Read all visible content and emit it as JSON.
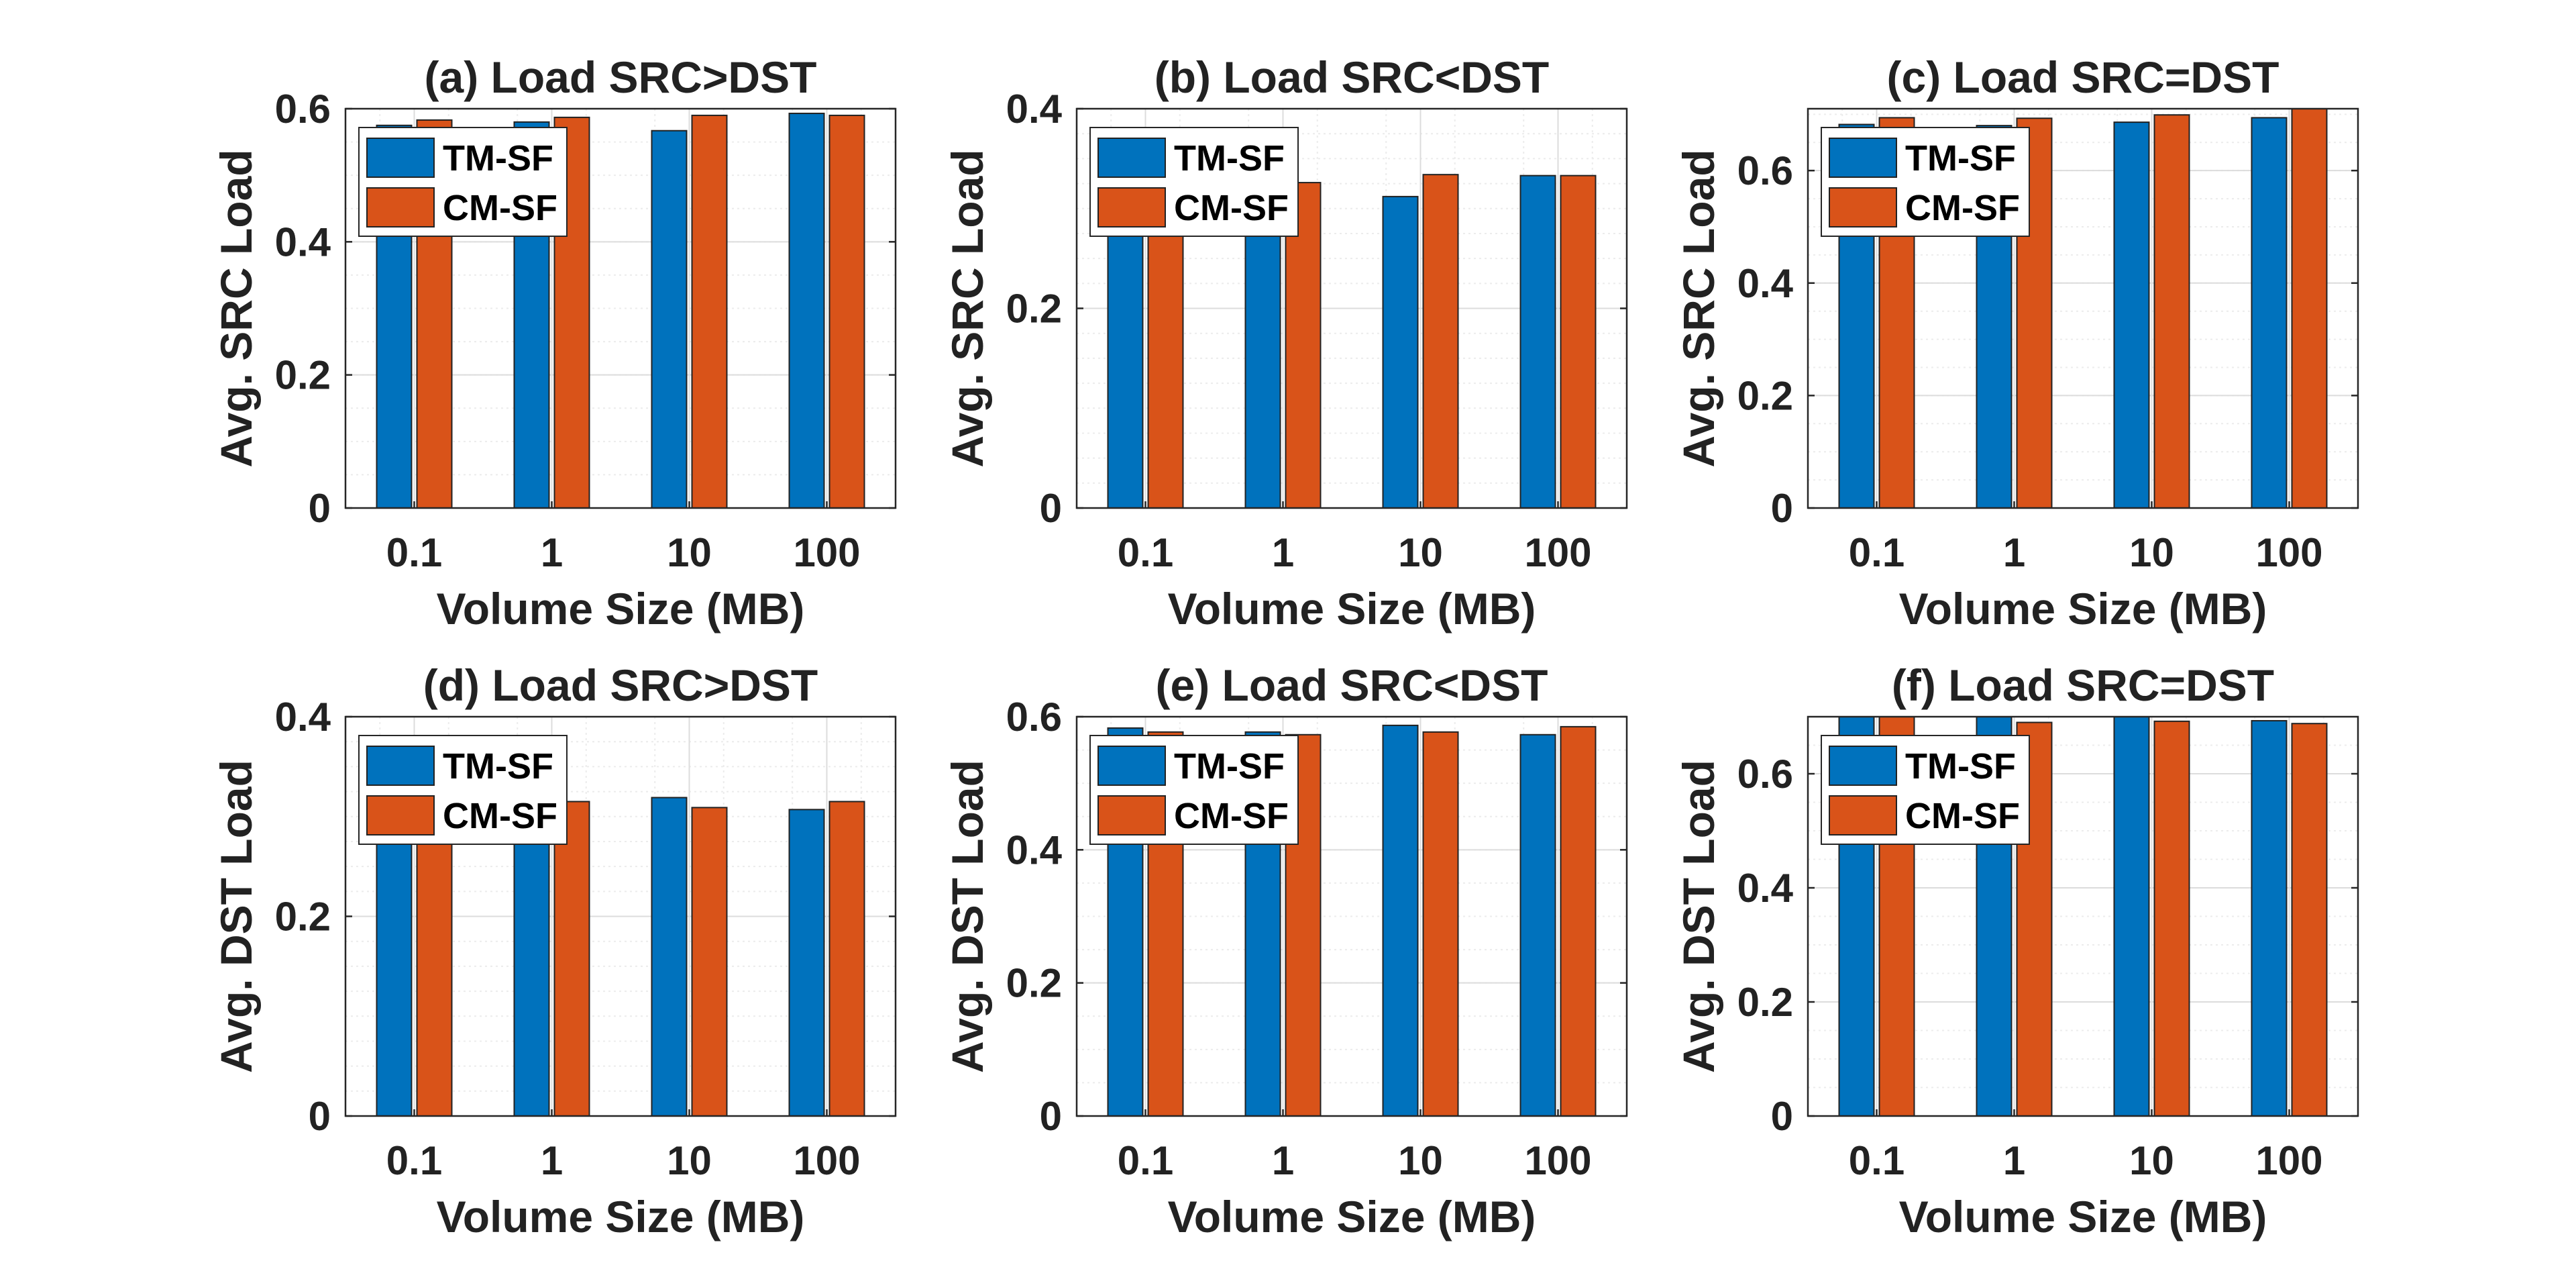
{
  "chart_data": [
    {
      "type": "bar",
      "title": "(a) Load SRC>DST",
      "xlabel": "Volume Size (MB)",
      "ylabel": "Avg. SRC Load",
      "categories": [
        "0.1",
        "1",
        "10",
        "100"
      ],
      "ylim": [
        0,
        0.6
      ],
      "yticks": [
        0,
        0.2,
        0.4,
        0.6
      ],
      "ytick_labels": [
        "0",
        "0.2",
        "0.4",
        "0.6"
      ],
      "grid": true,
      "legend_position": "top-left",
      "series": [
        {
          "name": "TM-SF",
          "color": "#0072BD",
          "values": [
            0.575,
            0.58,
            0.567,
            0.593
          ]
        },
        {
          "name": "CM-SF",
          "color": "#D95319",
          "values": [
            0.583,
            0.587,
            0.59,
            0.59
          ]
        }
      ]
    },
    {
      "type": "bar",
      "title": "(b) Load SRC<DST",
      "xlabel": "Volume Size (MB)",
      "ylabel": "Avg. SRC Load",
      "categories": [
        "0.1",
        "1",
        "10",
        "100"
      ],
      "ylim": [
        0,
        0.4
      ],
      "yticks": [
        0,
        0.2,
        0.4
      ],
      "ytick_labels": [
        "0",
        "0.2",
        "0.4"
      ],
      "grid": true,
      "legend_position": "top-left",
      "series": [
        {
          "name": "TM-SF",
          "color": "#0072BD",
          "values": [
            0.318,
            0.32,
            0.312,
            0.333
          ]
        },
        {
          "name": "CM-SF",
          "color": "#D95319",
          "values": [
            0.322,
            0.326,
            0.334,
            0.333
          ]
        }
      ]
    },
    {
      "type": "bar",
      "title": "(c) Load SRC=DST",
      "xlabel": "Volume Size (MB)",
      "ylabel": "Avg. SRC Load",
      "categories": [
        "0.1",
        "1",
        "10",
        "100"
      ],
      "ylim": [
        0,
        0.71
      ],
      "yticks": [
        0,
        0.2,
        0.4,
        0.6
      ],
      "ytick_labels": [
        "0",
        "0.2",
        "0.4",
        "0.6"
      ],
      "grid": true,
      "legend_position": "top-left",
      "series": [
        {
          "name": "TM-SF",
          "color": "#0072BD",
          "values": [
            0.682,
            0.68,
            0.686,
            0.694
          ]
        },
        {
          "name": "CM-SF",
          "color": "#D95319",
          "values": [
            0.694,
            0.693,
            0.699,
            0.71
          ]
        }
      ]
    },
    {
      "type": "bar",
      "title": "(d) Load SRC>DST",
      "xlabel": "Volume Size (MB)",
      "ylabel": "Avg. DST Load",
      "categories": [
        "0.1",
        "1",
        "10",
        "100"
      ],
      "ylim": [
        0,
        0.4
      ],
      "yticks": [
        0,
        0.2,
        0.4
      ],
      "ytick_labels": [
        "0",
        "0.2",
        "0.4"
      ],
      "grid": true,
      "legend_position": "top-left",
      "series": [
        {
          "name": "TM-SF",
          "color": "#0072BD",
          "values": [
            0.31,
            0.312,
            0.319,
            0.307
          ]
        },
        {
          "name": "CM-SF",
          "color": "#D95319",
          "values": [
            0.315,
            0.315,
            0.309,
            0.315
          ]
        }
      ]
    },
    {
      "type": "bar",
      "title": "(e) Load SRC<DST",
      "xlabel": "Volume Size (MB)",
      "ylabel": "Avg. DST Load",
      "categories": [
        "0.1",
        "1",
        "10",
        "100"
      ],
      "ylim": [
        0,
        0.6
      ],
      "yticks": [
        0,
        0.2,
        0.4,
        0.6
      ],
      "ytick_labels": [
        "0",
        "0.2",
        "0.4",
        "0.6"
      ],
      "grid": true,
      "legend_position": "top-left",
      "series": [
        {
          "name": "TM-SF",
          "color": "#0072BD",
          "values": [
            0.583,
            0.577,
            0.587,
            0.573
          ]
        },
        {
          "name": "CM-SF",
          "color": "#D95319",
          "values": [
            0.577,
            0.573,
            0.577,
            0.585
          ]
        }
      ]
    },
    {
      "type": "bar",
      "title": "(f) Load SRC=DST",
      "xlabel": "Volume Size (MB)",
      "ylabel": "Avg. DST Load",
      "categories": [
        "0.1",
        "1",
        "10",
        "100"
      ],
      "ylim": [
        0,
        0.7
      ],
      "yticks": [
        0,
        0.2,
        0.4,
        0.6
      ],
      "ytick_labels": [
        "0",
        "0.2",
        "0.4",
        "0.6"
      ],
      "grid": true,
      "legend_position": "top-left",
      "series": [
        {
          "name": "TM-SF",
          "color": "#0072BD",
          "values": [
            0.7,
            0.7,
            0.7,
            0.693
          ]
        },
        {
          "name": "CM-SF",
          "color": "#D95319",
          "values": [
            0.7,
            0.69,
            0.692,
            0.688
          ]
        }
      ]
    }
  ]
}
